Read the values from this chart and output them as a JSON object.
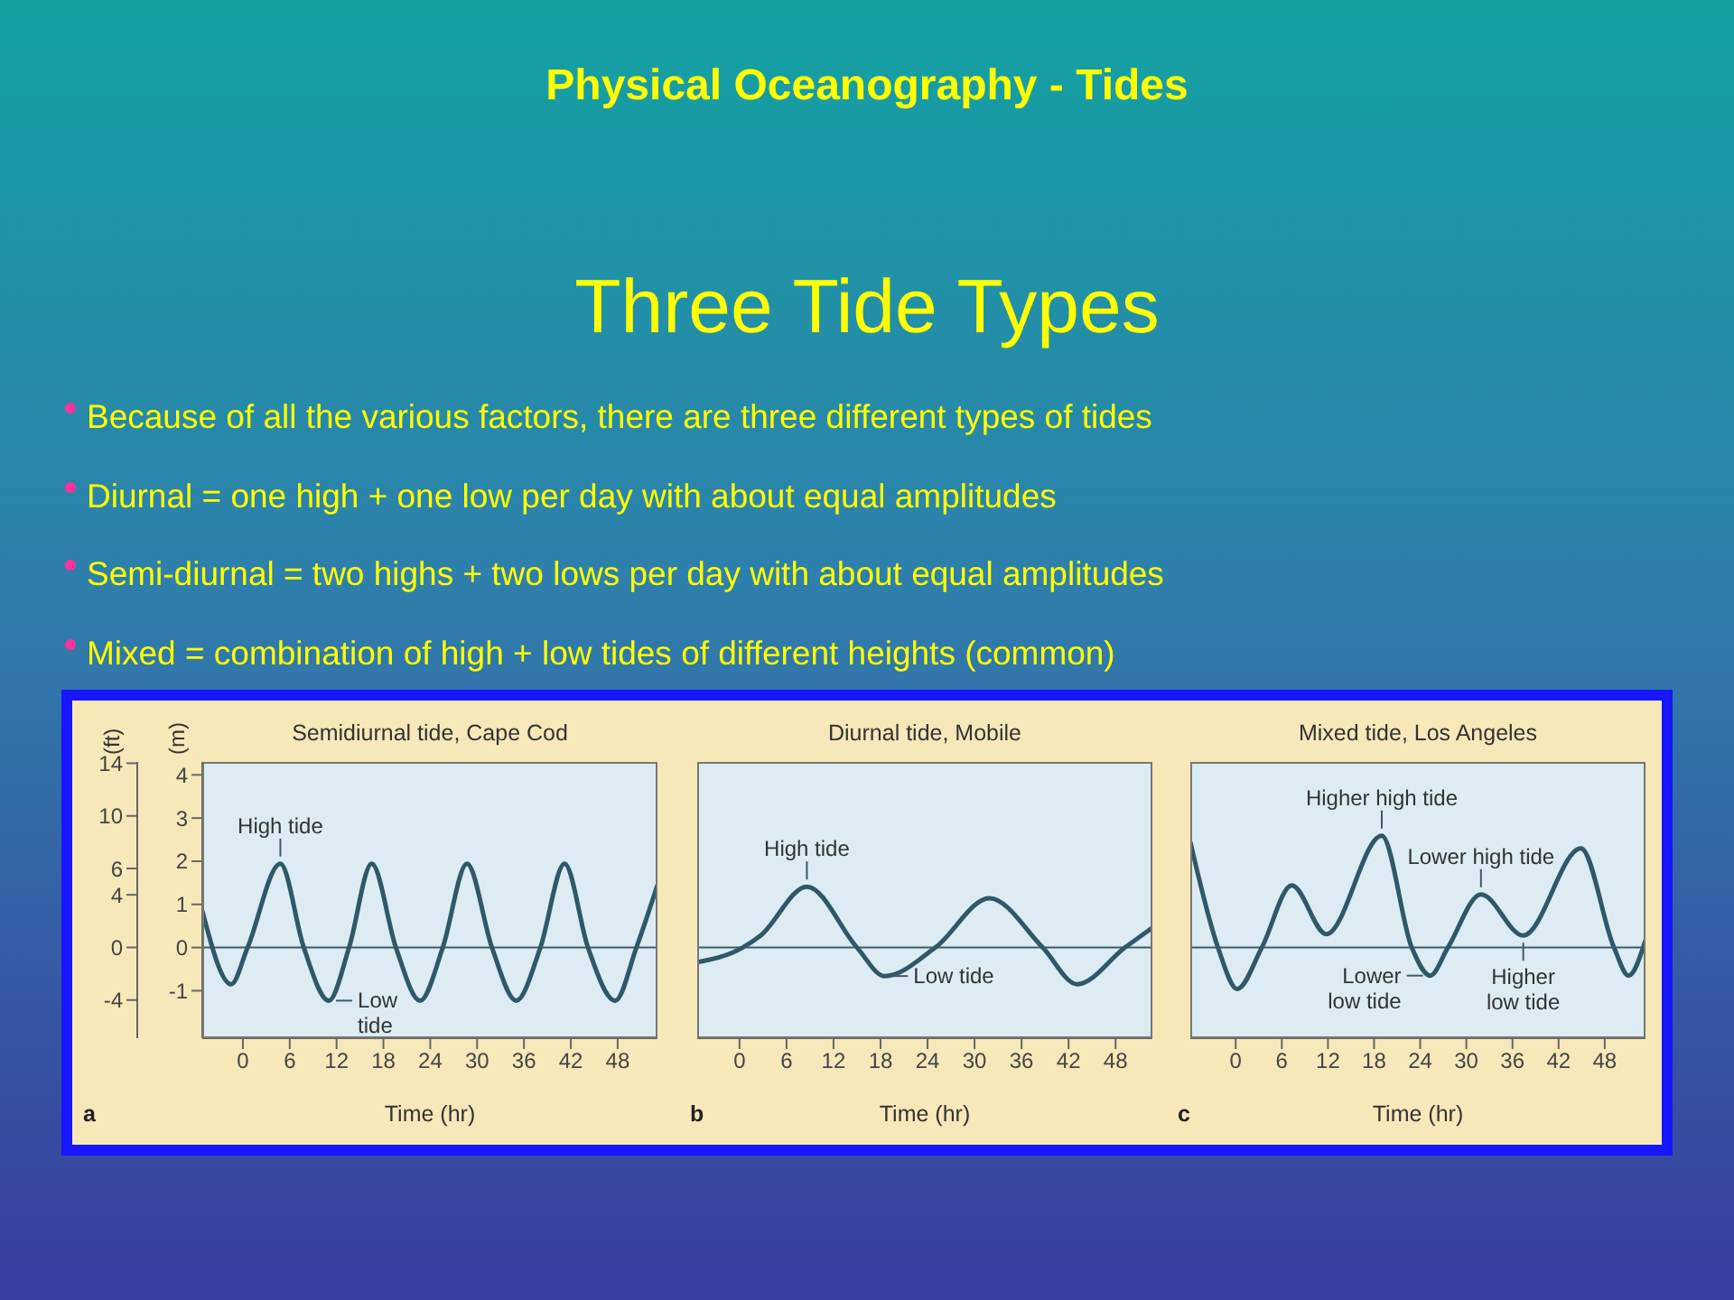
{
  "chart_data": [
    {
      "type": "other",
      "title": "Physical Oceanography - Tides",
      "subtitle": "Three Tide Types",
      "annotations": [
        "Because of all the various factors, there are three different types of tides",
        "Diurnal = one high + one low per day with about equal amplitudes",
        "Semi-diurnal = two highs + two lows per day with about equal amplitudes",
        "Mixed = combination of high + low tides of different heights (common)"
      ]
    },
    {
      "type": "line",
      "title": "Semidiurnal tide, Cape Cod",
      "xlabel": "Time (hr)",
      "ylabel": "(m)",
      "y2label": "(ft)",
      "color": "#2f5868",
      "x": [
        -5.2,
        -1.5,
        0.6,
        4.8,
        7.8,
        11,
        13.6,
        16.5,
        19.6,
        22.7,
        25.6,
        28.7,
        31.9,
        35,
        38.1,
        41.2,
        44.2,
        47.7,
        50.4,
        53.1
      ],
      "values": [
        0.85,
        -0.85,
        0,
        1.94,
        0,
        -1.23,
        0,
        1.94,
        0,
        -1.23,
        0,
        1.94,
        0,
        -1.23,
        0,
        1.94,
        0,
        -1.23,
        0,
        1.45
      ],
      "xlim": [
        -5.2,
        53.1
      ],
      "xticks": [
        0,
        6,
        12,
        18,
        24,
        30,
        36,
        42,
        48
      ],
      "ylim": [
        -2.1,
        4.3
      ],
      "yticks": [
        -1,
        0,
        1,
        2,
        3,
        4
      ],
      "y2lim": [
        -6.9,
        14.1
      ],
      "y2ticks": [
        -4,
        0,
        4,
        6,
        10,
        14
      ],
      "ref_lines": [
        {
          "axis": "y",
          "value": 0,
          "color": "#3d5a66"
        }
      ],
      "annotations": [
        {
          "text": "High tide",
          "x": 4.8,
          "y": 1.94
        },
        {
          "text": "Low\ntide",
          "x": 11,
          "y": -1.23
        },
        "a"
      ]
    },
    {
      "type": "line",
      "title": "Diurnal tide, Mobile",
      "xlabel": "Time (hr)",
      "color": "#2f5868",
      "tick_labels": "x",
      "x": [
        -5.4,
        0.4,
        2.7,
        8.6,
        15,
        18.5,
        25,
        31.9,
        38.7,
        43.1,
        49.2,
        52.7
      ],
      "values": [
        -0.34,
        0,
        0.28,
        1.41,
        0,
        -0.66,
        0,
        1.14,
        0,
        -0.85,
        0,
        0.46
      ],
      "xlim": [
        -5.4,
        52.7
      ],
      "xticks": [
        0,
        6,
        12,
        18,
        24,
        30,
        36,
        42,
        48
      ],
      "ylim": [
        -2.1,
        4.3
      ],
      "yticks": [
        -1,
        0,
        1,
        2,
        3,
        4
      ],
      "ref_lines": [
        {
          "axis": "y",
          "value": 0,
          "color": "#3d5a66"
        }
      ],
      "annotations": [
        {
          "text": "High tide",
          "x": 8.6,
          "y": 1.41
        },
        {
          "text": "Low tide",
          "x": 18.5,
          "y": -0.66
        },
        "b"
      ]
    },
    {
      "type": "line",
      "title": "Mixed tide, Los Angeles",
      "xlabel": "Time (hr)",
      "color": "#2f5868",
      "tick_labels": "x",
      "x": [
        -5.9,
        -2.3,
        0.2,
        3.4,
        7.3,
        11.8,
        19,
        22.9,
        25.3,
        27.6,
        31.9,
        37.4,
        44.9,
        49.2,
        51.1,
        53.3
      ],
      "values": [
        2.45,
        0,
        -0.96,
        0,
        1.44,
        0.31,
        2.59,
        0,
        -0.65,
        0,
        1.23,
        0.28,
        2.3,
        0,
        -0.65,
        0.17
      ],
      "xlim": [
        -5.9,
        53.3
      ],
      "xticks": [
        0,
        6,
        12,
        18,
        24,
        30,
        36,
        42,
        48
      ],
      "ylim": [
        -2.1,
        4.3
      ],
      "yticks": [
        -1,
        0,
        1,
        2,
        3,
        4
      ],
      "ref_lines": [
        {
          "axis": "y",
          "value": 0,
          "color": "#3d5a66"
        }
      ],
      "annotations": [
        {
          "text": "Higher high tide",
          "x": 19,
          "y": 2.59
        },
        {
          "text": "Lower high tide",
          "x": 31.9,
          "y": 1.23
        },
        {
          "text": "Lower\nlow tide",
          "x": 25.3,
          "y": -0.65
        },
        {
          "text": "Higher\nlow tide",
          "x": 37.4,
          "y": 0.28
        },
        "c"
      ]
    }
  ]
}
